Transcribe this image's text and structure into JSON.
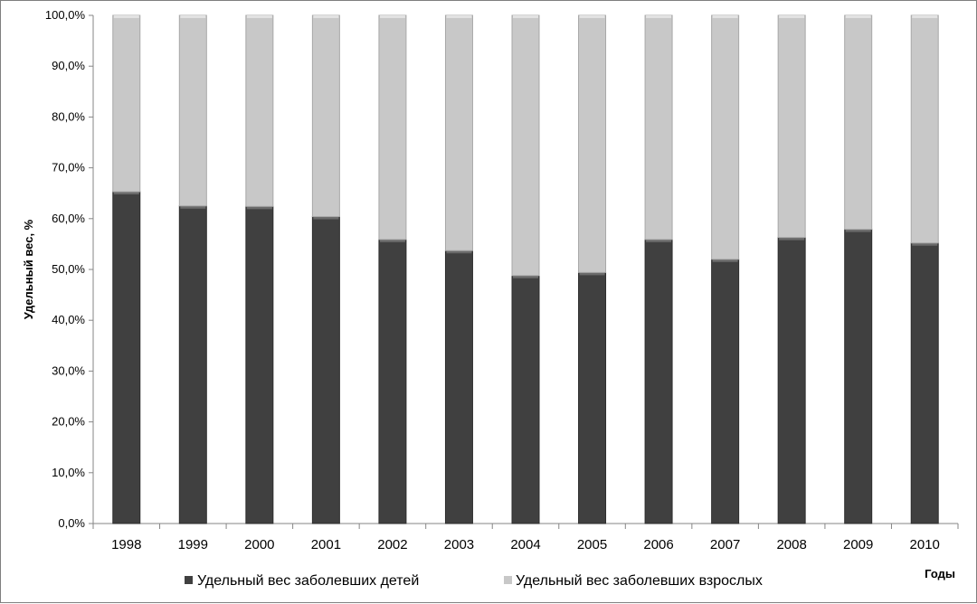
{
  "chart_data": {
    "type": "bar",
    "stacked": true,
    "percent": true,
    "categories": [
      "1998",
      "1999",
      "2000",
      "2001",
      "2002",
      "2003",
      "2004",
      "2005",
      "2006",
      "2007",
      "2008",
      "2009",
      "2010"
    ],
    "series": [
      {
        "name": "Удельный вес заболевших детей",
        "color": "#404040",
        "values": [
          65.3,
          62.5,
          62.4,
          60.4,
          55.9,
          53.7,
          48.8,
          49.4,
          55.9,
          52.0,
          56.3,
          57.9,
          55.2
        ]
      },
      {
        "name": "Удельный вес заболевших взрослых",
        "color": "#c8c8c8",
        "values": [
          34.7,
          37.5,
          37.6,
          39.6,
          44.1,
          46.3,
          51.2,
          50.6,
          44.1,
          48.0,
          43.7,
          42.1,
          44.8
        ]
      }
    ],
    "ylabel": "Удельный вес, %",
    "xlabel": "Годы",
    "ylim": [
      0,
      100
    ],
    "yticks": [
      "0,0%",
      "10,0%",
      "20,0%",
      "30,0%",
      "40,0%",
      "50,0%",
      "60,0%",
      "70,0%",
      "80,0%",
      "90,0%",
      "100,0%"
    ],
    "grid": false,
    "legend_position": "bottom"
  }
}
